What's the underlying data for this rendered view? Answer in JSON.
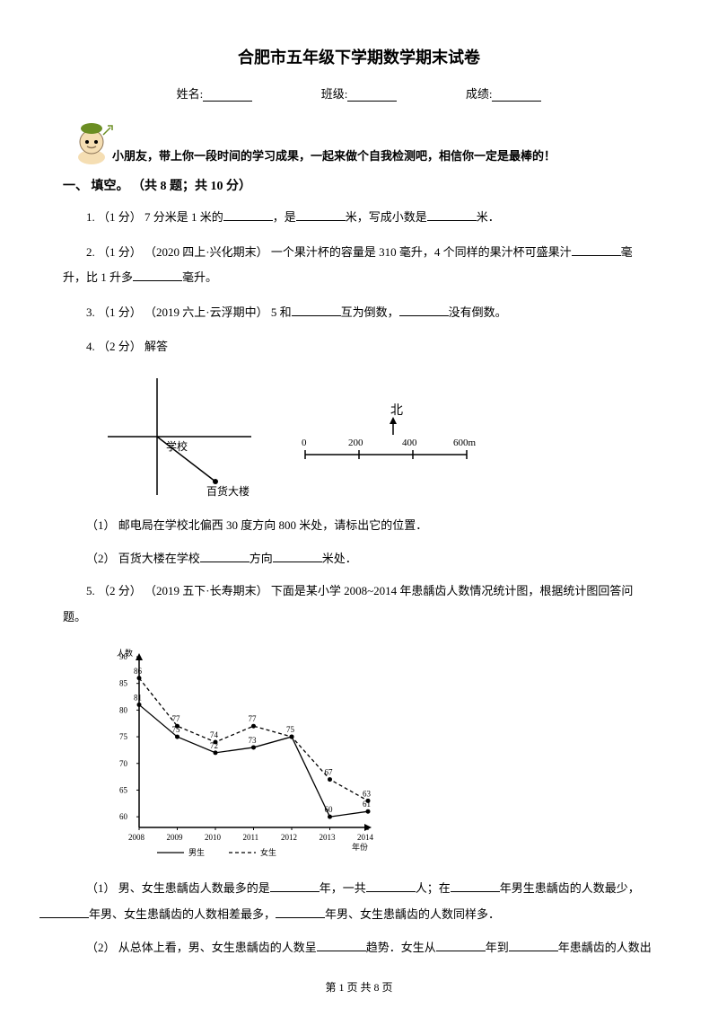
{
  "title": "合肥市五年级下学期数学期末试卷",
  "header": {
    "name_label": "姓名:",
    "class_label": "班级:",
    "score_label": "成绩:"
  },
  "intro": "小朋友，带上你一段时间的学习成果，一起来做个自我检测吧，相信你一定是最棒的！",
  "section1": {
    "heading": "一、 填空。 （共 8 题；共 10 分）"
  },
  "q1": {
    "prefix": "1. （1 分） 7 分米是 1 米的",
    "mid1": "，是",
    "mid2": "米，写成小数是",
    "suffix": "米．"
  },
  "q2": {
    "prefix": "2. （1 分） （2020 四上·兴化期末） 一个果汁杯的容量是 310 毫升，4 个同样的果汁杯可盛果汁",
    "mid1": "毫升，比 1 升多",
    "suffix": "毫升。"
  },
  "q3": {
    "prefix": "3. （1 分） （2019 六上·云浮期中） 5 和",
    "mid1": "互为倒数，",
    "suffix": "没有倒数。"
  },
  "q4": {
    "prefix": "4. （2 分） 解答",
    "sub1": "（1） 邮电局在学校北偏西 30 度方向 800 米处，请标出它的位置．",
    "sub2_a": "（2） 百货大楼在学校",
    "sub2_b": "方向",
    "sub2_c": "米处．",
    "diagram": {
      "school_label": "学校",
      "building_label": "百货大楼",
      "north_label": "北",
      "scale_values": [
        "0",
        "200",
        "400",
        "600m"
      ],
      "line_color": "#000000"
    }
  },
  "q5": {
    "prefix": "5. （2 分） （2019 五下·长寿期末） 下面是某小学 2008~2014 年患龋齿人数情况统计图，根据统计图回答问题。",
    "chart": {
      "type": "line",
      "y_label": "人数",
      "x_label": "年份",
      "legend": {
        "male": "男生",
        "female": "女生"
      },
      "x_categories": [
        "2008",
        "2009",
        "2010",
        "2011",
        "2012",
        "2013",
        "2014"
      ],
      "y_ticks": [
        60,
        65,
        70,
        75,
        80,
        85,
        90
      ],
      "male": {
        "values": [
          81,
          75,
          72,
          73,
          75,
          60,
          61
        ],
        "style": "solid",
        "color": "#000000"
      },
      "female": {
        "values": [
          86,
          77,
          74,
          77,
          75,
          67,
          63
        ],
        "style": "dashed",
        "color": "#000000"
      },
      "value_labels": {
        "male": [
          "81",
          "75",
          "72",
          "73",
          "75",
          "60",
          "61"
        ],
        "female": [
          "86",
          "77",
          "74",
          "77",
          "",
          "67",
          "63"
        ]
      },
      "background_color": "#ffffff",
      "axis_color": "#000000",
      "fontsize": 9
    },
    "sub1_a": "（1） 男、女生患龋齿人数最多的是",
    "sub1_b": "年，一共",
    "sub1_c": "人；在",
    "sub1_d": "年男生患龋齿的人数最少，",
    "sub1_e": "年男、女生患龋齿的人数相差最多，",
    "sub1_f": "年男、女生患龋齿的人数同样多．",
    "sub2_a": "（2） 从总体上看，男、女生患龋齿的人数呈",
    "sub2_b": "趋势．女生从",
    "sub2_c": "年到",
    "sub2_d": "年患龋齿的人数出"
  },
  "footer": "第 1 页 共 8 页"
}
